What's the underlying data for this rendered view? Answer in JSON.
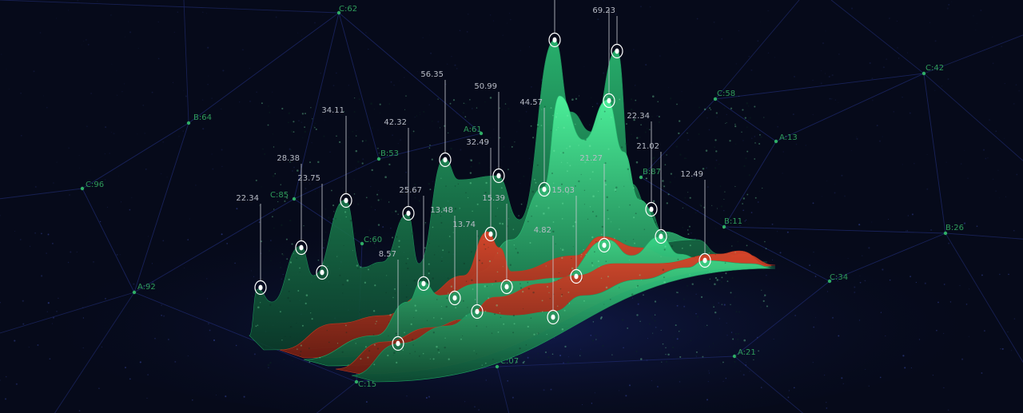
{
  "colors": {
    "background": "#060a1a",
    "network_line": "#1b2560",
    "network_node": "#2fae66",
    "network_label": "#2f9c5b",
    "green_dark": "#0e5a3a",
    "green_mid": "#1f9a5e",
    "green_bright": "#3ee38e",
    "red": "#c2391f",
    "marker": "#ffffff",
    "value_label": "#b8bcc6"
  },
  "network_nodes": [
    {
      "label": "C:62"
    },
    {
      "label": "B:64"
    },
    {
      "label": "C:96"
    },
    {
      "label": "A:92"
    },
    {
      "label": "C:85"
    },
    {
      "label": "B:53"
    },
    {
      "label": "A:61"
    },
    {
      "label": "C:60"
    },
    {
      "label": "C:58"
    },
    {
      "label": "A:13"
    },
    {
      "label": "C:42"
    },
    {
      "label": "B:87"
    },
    {
      "label": "B:11"
    },
    {
      "label": "B:26"
    },
    {
      "label": "C:34"
    },
    {
      "label": "A:21"
    },
    {
      "label": "C:07"
    },
    {
      "label": "C:15"
    }
  ],
  "chart_data": {
    "type": "area",
    "title": "",
    "xlabel": "",
    "ylabel": "",
    "grid": false,
    "legend": "none",
    "series": [
      {
        "color": "#1b8a57"
      },
      {
        "color": "#2bbf74"
      },
      {
        "color": "#c2391f"
      },
      {
        "color": "#22a865"
      },
      {
        "color": "#c2391f"
      },
      {
        "color": "#1e9a60"
      }
    ],
    "value_labels": [
      "22.34",
      "28.38",
      "34.11",
      "23.75",
      "42.32",
      "56.35",
      "50.99",
      "32.49",
      "44.57",
      "69.23",
      "25.67",
      "13.48",
      "13.74",
      "15.39",
      "21.27",
      "22.34",
      "21.02",
      "12.49",
      "8.57",
      "15.03",
      "4.82"
    ]
  }
}
